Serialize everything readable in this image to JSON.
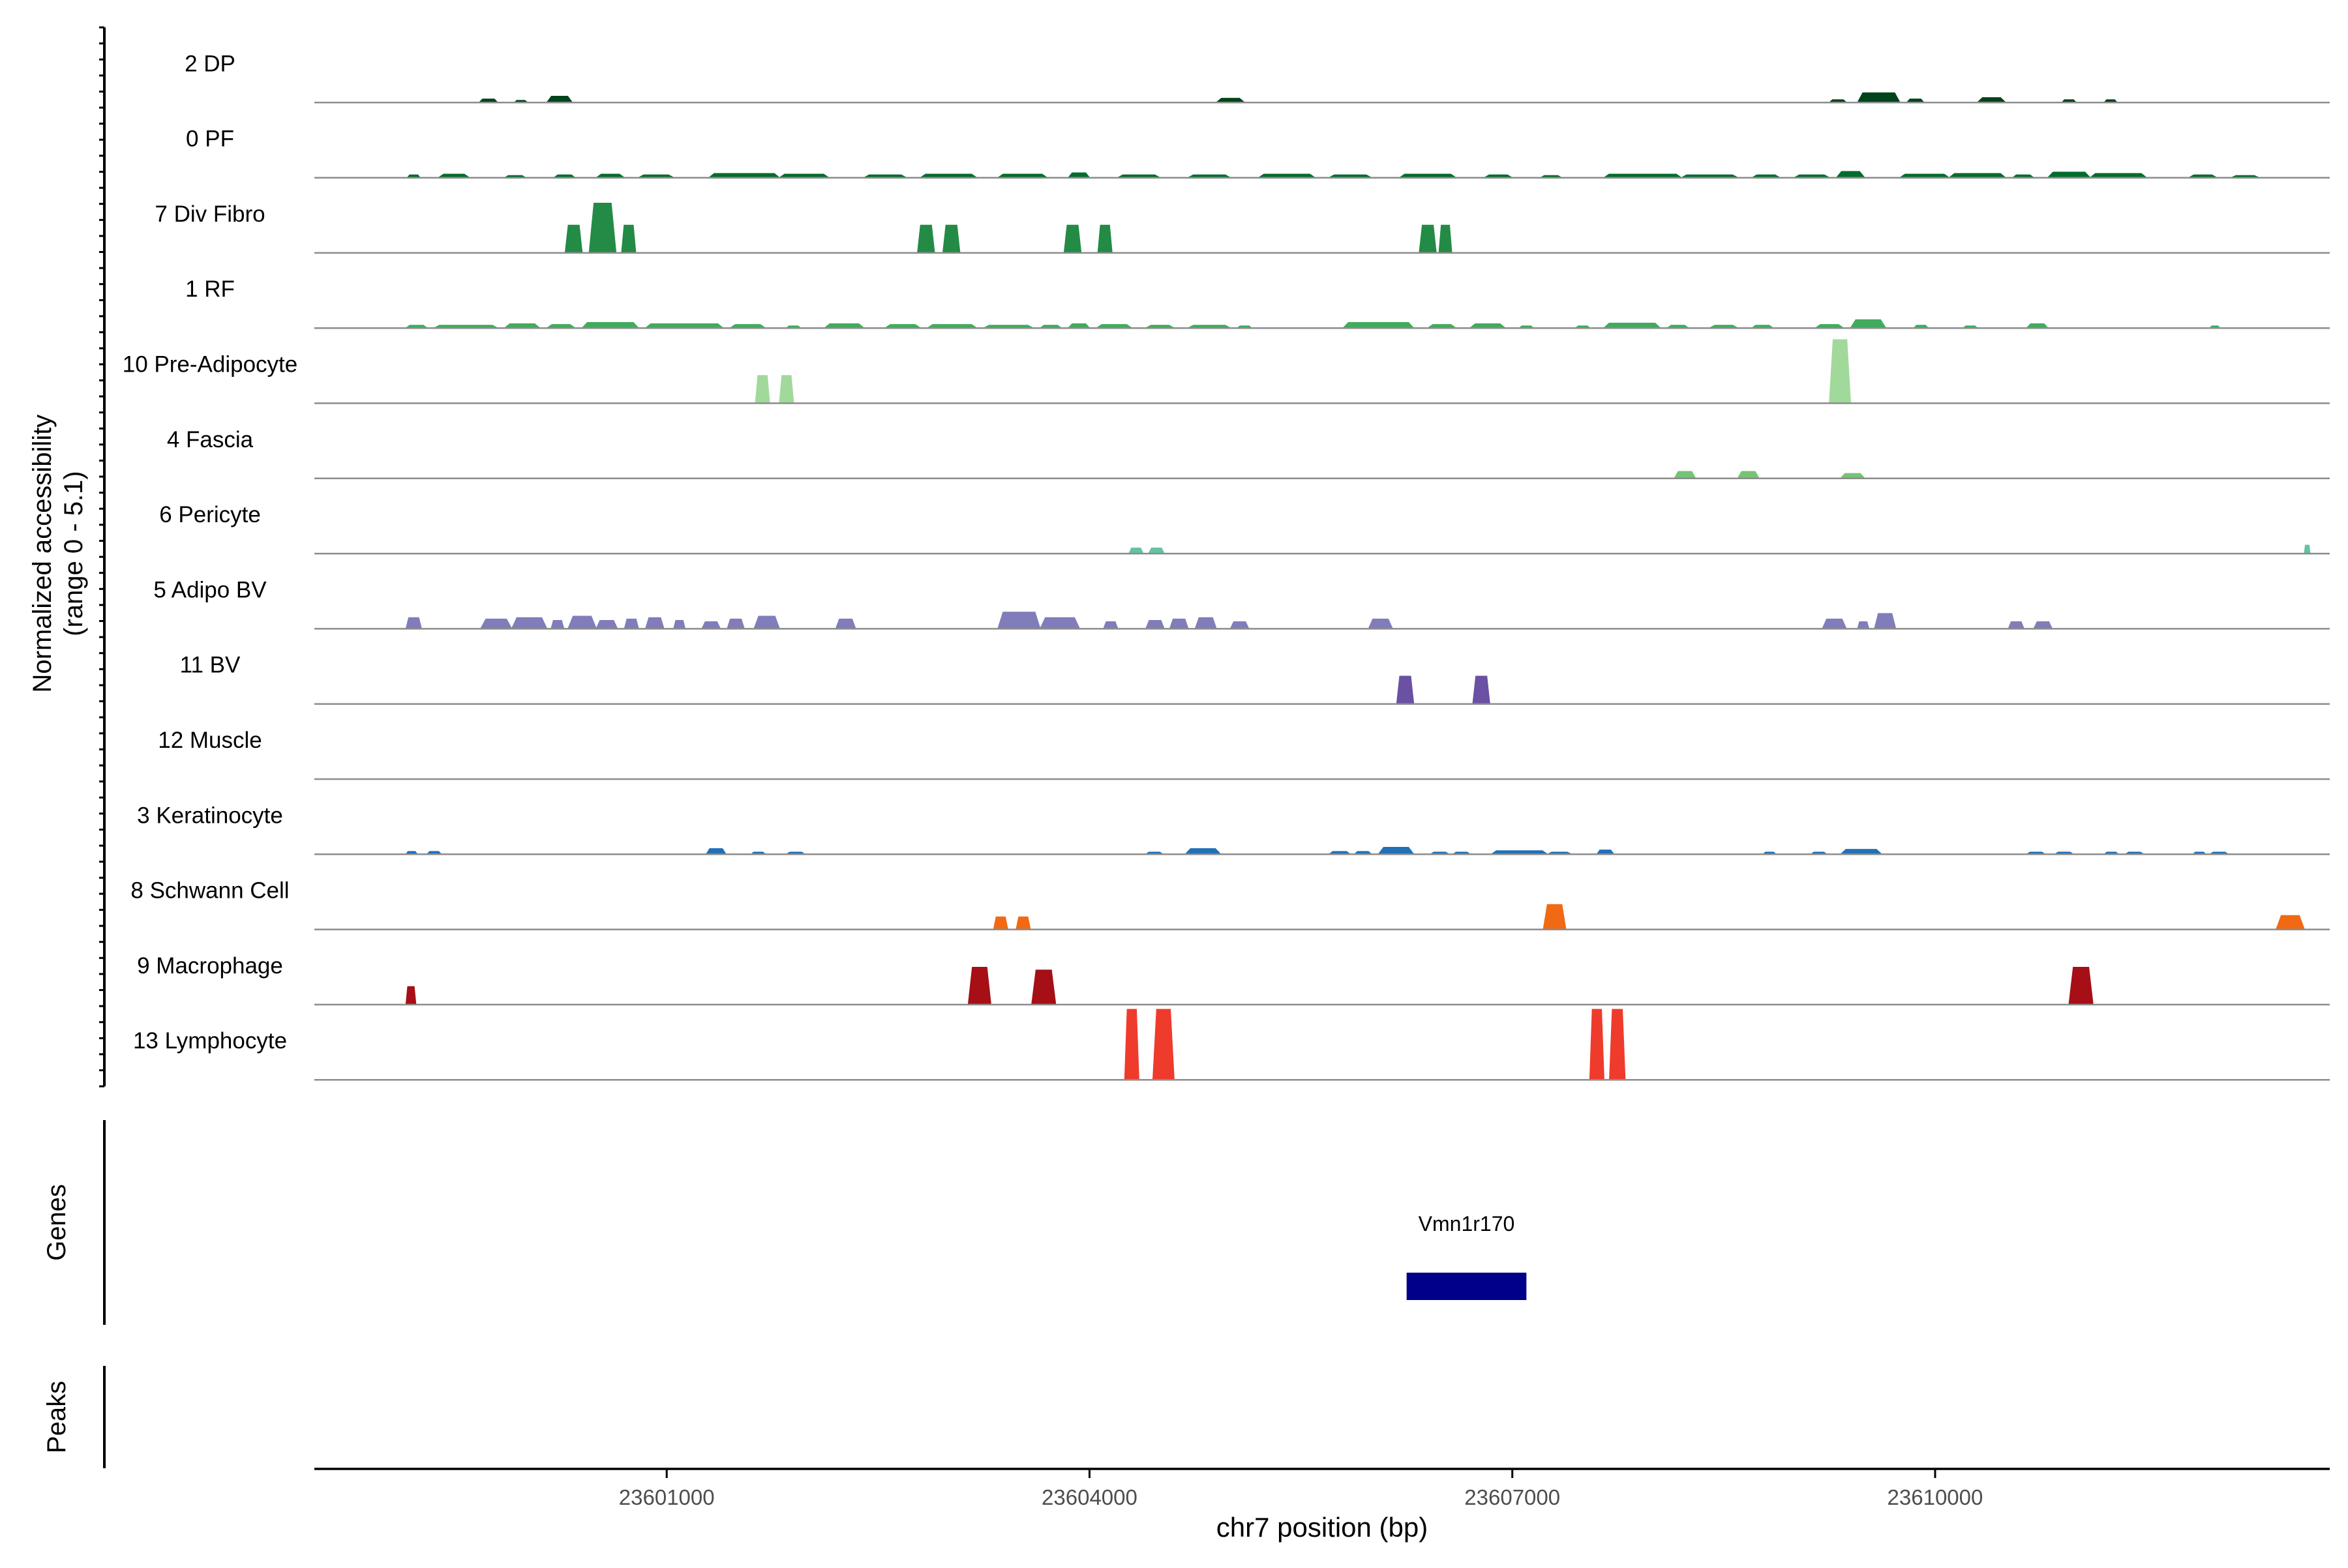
{
  "chart_data": {
    "type": "area",
    "title": "",
    "ylabel_line1": "Normalized accessibility",
    "ylabel_line2": "(range 0 - 5.1)",
    "xlabel": "chr7 position (bp)",
    "xlim": [
      23598500,
      23612800
    ],
    "xticks": [
      23601000,
      23604000,
      23607000,
      23610000
    ],
    "xtick_labels": [
      "23601000",
      "23604000",
      "23607000",
      "23610000"
    ],
    "ylim": [
      0,
      5.1
    ],
    "tracks": [
      {
        "name": "2 DP",
        "color": "#00441b",
        "peaks": [
          {
            "s": 23599670,
            "e": 23599800,
            "h": 0.25
          },
          {
            "s": 23599920,
            "e": 23600010,
            "h": 0.15
          },
          {
            "s": 23600150,
            "e": 23600330,
            "h": 0.45
          },
          {
            "s": 23604900,
            "e": 23605100,
            "h": 0.3
          },
          {
            "s": 23609250,
            "e": 23609370,
            "h": 0.2
          },
          {
            "s": 23609450,
            "e": 23609750,
            "h": 0.7
          },
          {
            "s": 23609800,
            "e": 23609920,
            "h": 0.25
          },
          {
            "s": 23610300,
            "e": 23610500,
            "h": 0.35
          },
          {
            "s": 23610900,
            "e": 23611000,
            "h": 0.2
          },
          {
            "s": 23611200,
            "e": 23611290,
            "h": 0.2
          }
        ]
      },
      {
        "name": "0 PF",
        "color": "#006d2c",
        "peaks": [
          {
            "s": 23599160,
            "e": 23599250,
            "h": 0.2
          },
          {
            "s": 23599380,
            "e": 23599600,
            "h": 0.25
          },
          {
            "s": 23599850,
            "e": 23600000,
            "h": 0.15
          },
          {
            "s": 23600200,
            "e": 23600350,
            "h": 0.2
          },
          {
            "s": 23600500,
            "e": 23600700,
            "h": 0.25
          },
          {
            "s": 23600800,
            "e": 23601050,
            "h": 0.2
          },
          {
            "s": 23601300,
            "e": 23601800,
            "h": 0.3
          },
          {
            "s": 23601800,
            "e": 23602150,
            "h": 0.25
          },
          {
            "s": 23602400,
            "e": 23602700,
            "h": 0.2
          },
          {
            "s": 23602800,
            "e": 23603200,
            "h": 0.25
          },
          {
            "s": 23603350,
            "e": 23603700,
            "h": 0.25
          },
          {
            "s": 23603850,
            "e": 23604000,
            "h": 0.35
          },
          {
            "s": 23604200,
            "e": 23604500,
            "h": 0.2
          },
          {
            "s": 23604700,
            "e": 23605000,
            "h": 0.2
          },
          {
            "s": 23605200,
            "e": 23605600,
            "h": 0.25
          },
          {
            "s": 23605700,
            "e": 23606000,
            "h": 0.2
          },
          {
            "s": 23606200,
            "e": 23606600,
            "h": 0.25
          },
          {
            "s": 23606800,
            "e": 23607000,
            "h": 0.2
          },
          {
            "s": 23607200,
            "e": 23607350,
            "h": 0.15
          },
          {
            "s": 23607650,
            "e": 23608200,
            "h": 0.25
          },
          {
            "s": 23608200,
            "e": 23608600,
            "h": 0.2
          },
          {
            "s": 23608700,
            "e": 23608900,
            "h": 0.2
          },
          {
            "s": 23609000,
            "e": 23609250,
            "h": 0.2
          },
          {
            "s": 23609300,
            "e": 23609500,
            "h": 0.45
          },
          {
            "s": 23609750,
            "e": 23610100,
            "h": 0.25
          },
          {
            "s": 23610100,
            "e": 23610500,
            "h": 0.3
          },
          {
            "s": 23610550,
            "e": 23610700,
            "h": 0.2
          },
          {
            "s": 23610800,
            "e": 23611100,
            "h": 0.4
          },
          {
            "s": 23611100,
            "e": 23611500,
            "h": 0.3
          },
          {
            "s": 23611800,
            "e": 23612000,
            "h": 0.2
          },
          {
            "s": 23612100,
            "e": 23612300,
            "h": 0.15
          }
        ]
      },
      {
        "name": "7 Div Fibro",
        "color": "#238b45",
        "peaks": [
          {
            "s": 23600280,
            "e": 23600400,
            "h": 2.0
          },
          {
            "s": 23600450,
            "e": 23600640,
            "h": 3.6
          },
          {
            "s": 23600680,
            "e": 23600780,
            "h": 2.0
          },
          {
            "s": 23602780,
            "e": 23602900,
            "h": 2.0
          },
          {
            "s": 23602960,
            "e": 23603080,
            "h": 2.0
          },
          {
            "s": 23603820,
            "e": 23603940,
            "h": 2.0
          },
          {
            "s": 23604060,
            "e": 23604160,
            "h": 2.0
          },
          {
            "s": 23606340,
            "e": 23606460,
            "h": 2.0
          },
          {
            "s": 23606480,
            "e": 23606570,
            "h": 2.0
          }
        ]
      },
      {
        "name": "1 RF",
        "color": "#41ab5d",
        "peaks": [
          {
            "s": 23599150,
            "e": 23599300,
            "h": 0.2
          },
          {
            "s": 23599350,
            "e": 23599800,
            "h": 0.2
          },
          {
            "s": 23599850,
            "e": 23600100,
            "h": 0.3
          },
          {
            "s": 23600150,
            "e": 23600350,
            "h": 0.25
          },
          {
            "s": 23600400,
            "e": 23600800,
            "h": 0.4
          },
          {
            "s": 23600850,
            "e": 23601400,
            "h": 0.3
          },
          {
            "s": 23601450,
            "e": 23601700,
            "h": 0.25
          },
          {
            "s": 23601850,
            "e": 23601950,
            "h": 0.15
          },
          {
            "s": 23602120,
            "e": 23602400,
            "h": 0.3
          },
          {
            "s": 23602550,
            "e": 23602800,
            "h": 0.25
          },
          {
            "s": 23602850,
            "e": 23603200,
            "h": 0.25
          },
          {
            "s": 23603250,
            "e": 23603600,
            "h": 0.2
          },
          {
            "s": 23603650,
            "e": 23603800,
            "h": 0.2
          },
          {
            "s": 23603850,
            "e": 23604000,
            "h": 0.3
          },
          {
            "s": 23604050,
            "e": 23604300,
            "h": 0.25
          },
          {
            "s": 23604400,
            "e": 23604600,
            "h": 0.2
          },
          {
            "s": 23604700,
            "e": 23605000,
            "h": 0.2
          },
          {
            "s": 23605050,
            "e": 23605150,
            "h": 0.15
          },
          {
            "s": 23605800,
            "e": 23606300,
            "h": 0.4
          },
          {
            "s": 23606400,
            "e": 23606600,
            "h": 0.25
          },
          {
            "s": 23606700,
            "e": 23606950,
            "h": 0.3
          },
          {
            "s": 23607050,
            "e": 23607150,
            "h": 0.15
          },
          {
            "s": 23607450,
            "e": 23607550,
            "h": 0.15
          },
          {
            "s": 23607650,
            "e": 23608050,
            "h": 0.35
          },
          {
            "s": 23608100,
            "e": 23608250,
            "h": 0.2
          },
          {
            "s": 23608400,
            "e": 23608600,
            "h": 0.2
          },
          {
            "s": 23608700,
            "e": 23608850,
            "h": 0.2
          },
          {
            "s": 23609150,
            "e": 23609350,
            "h": 0.25
          },
          {
            "s": 23609400,
            "e": 23609650,
            "h": 0.6
          },
          {
            "s": 23609850,
            "e": 23609950,
            "h": 0.2
          },
          {
            "s": 23610200,
            "e": 23610300,
            "h": 0.15
          },
          {
            "s": 23610650,
            "e": 23610800,
            "h": 0.3
          },
          {
            "s": 23611950,
            "e": 23612020,
            "h": 0.15
          }
        ]
      },
      {
        "name": "10 Pre-Adipocyte",
        "color": "#a1d99b",
        "peaks": [
          {
            "s": 23601630,
            "e": 23601730,
            "h": 2.0
          },
          {
            "s": 23601800,
            "e": 23601900,
            "h": 2.0
          },
          {
            "s": 23609250,
            "e": 23609400,
            "h": 4.6
          }
        ]
      },
      {
        "name": "4 Fascia",
        "color": "#74c476",
        "peaks": [
          {
            "s": 23608150,
            "e": 23608300,
            "h": 0.5
          },
          {
            "s": 23608600,
            "e": 23608750,
            "h": 0.5
          },
          {
            "s": 23609330,
            "e": 23609500,
            "h": 0.35
          }
        ]
      },
      {
        "name": "6 Pericyte",
        "color": "#66c2a4",
        "peaks": [
          {
            "s": 23604280,
            "e": 23604380,
            "h": 0.4
          },
          {
            "s": 23604420,
            "e": 23604530,
            "h": 0.4
          },
          {
            "s": 23612620,
            "e": 23612660,
            "h": 0.6
          }
        ]
      },
      {
        "name": "5 Adipo BV",
        "color": "#807dba",
        "peaks": [
          {
            "s": 23599150,
            "e": 23599260,
            "h": 0.8
          },
          {
            "s": 23599680,
            "e": 23599900,
            "h": 0.7
          },
          {
            "s": 23599900,
            "e": 23600150,
            "h": 0.8
          },
          {
            "s": 23600180,
            "e": 23600270,
            "h": 0.6
          },
          {
            "s": 23600300,
            "e": 23600500,
            "h": 0.9
          },
          {
            "s": 23600500,
            "e": 23600650,
            "h": 0.6
          },
          {
            "s": 23600700,
            "e": 23600800,
            "h": 0.7
          },
          {
            "s": 23600850,
            "e": 23600980,
            "h": 0.8
          },
          {
            "s": 23601050,
            "e": 23601130,
            "h": 0.6
          },
          {
            "s": 23601250,
            "e": 23601380,
            "h": 0.5
          },
          {
            "s": 23601430,
            "e": 23601550,
            "h": 0.7
          },
          {
            "s": 23601620,
            "e": 23601800,
            "h": 0.9
          },
          {
            "s": 23602200,
            "e": 23602340,
            "h": 0.7
          },
          {
            "s": 23603350,
            "e": 23603650,
            "h": 1.2
          },
          {
            "s": 23603650,
            "e": 23603930,
            "h": 0.8
          },
          {
            "s": 23604100,
            "e": 23604200,
            "h": 0.5
          },
          {
            "s": 23604400,
            "e": 23604530,
            "h": 0.6
          },
          {
            "s": 23604570,
            "e": 23604700,
            "h": 0.7
          },
          {
            "s": 23604750,
            "e": 23604900,
            "h": 0.8
          },
          {
            "s": 23605000,
            "e": 23605130,
            "h": 0.5
          },
          {
            "s": 23605980,
            "e": 23606150,
            "h": 0.7
          },
          {
            "s": 23609200,
            "e": 23609370,
            "h": 0.7
          },
          {
            "s": 23609450,
            "e": 23609530,
            "h": 0.5
          },
          {
            "s": 23609570,
            "e": 23609720,
            "h": 1.1
          },
          {
            "s": 23610520,
            "e": 23610630,
            "h": 0.5
          },
          {
            "s": 23610700,
            "e": 23610830,
            "h": 0.5
          }
        ]
      },
      {
        "name": "11 BV",
        "color": "#6a51a3",
        "peaks": [
          {
            "s": 23606180,
            "e": 23606300,
            "h": 2.0
          },
          {
            "s": 23606720,
            "e": 23606840,
            "h": 2.0
          }
        ]
      },
      {
        "name": "12 Muscle",
        "color": "#54278f",
        "peaks": []
      },
      {
        "name": "3 Keratinocyte",
        "color": "#2171b5",
        "peaks": [
          {
            "s": 23599150,
            "e": 23599230,
            "h": 0.2
          },
          {
            "s": 23599300,
            "e": 23599400,
            "h": 0.2
          },
          {
            "s": 23601280,
            "e": 23601420,
            "h": 0.4
          },
          {
            "s": 23601600,
            "e": 23601700,
            "h": 0.15
          },
          {
            "s": 23601850,
            "e": 23601980,
            "h": 0.15
          },
          {
            "s": 23604400,
            "e": 23604520,
            "h": 0.15
          },
          {
            "s": 23604680,
            "e": 23604930,
            "h": 0.4
          },
          {
            "s": 23605700,
            "e": 23605850,
            "h": 0.2
          },
          {
            "s": 23605880,
            "e": 23606000,
            "h": 0.2
          },
          {
            "s": 23606050,
            "e": 23606300,
            "h": 0.5
          },
          {
            "s": 23606420,
            "e": 23606550,
            "h": 0.15
          },
          {
            "s": 23606580,
            "e": 23606700,
            "h": 0.15
          },
          {
            "s": 23606850,
            "e": 23607250,
            "h": 0.25
          },
          {
            "s": 23607250,
            "e": 23607420,
            "h": 0.15
          },
          {
            "s": 23607600,
            "e": 23607720,
            "h": 0.3
          },
          {
            "s": 23608780,
            "e": 23608870,
            "h": 0.15
          },
          {
            "s": 23609120,
            "e": 23609230,
            "h": 0.15
          },
          {
            "s": 23609330,
            "e": 23609620,
            "h": 0.35
          },
          {
            "s": 23610650,
            "e": 23610780,
            "h": 0.15
          },
          {
            "s": 23610850,
            "e": 23610980,
            "h": 0.15
          },
          {
            "s": 23611200,
            "e": 23611300,
            "h": 0.15
          },
          {
            "s": 23611350,
            "e": 23611480,
            "h": 0.15
          },
          {
            "s": 23611830,
            "e": 23611920,
            "h": 0.15
          },
          {
            "s": 23611950,
            "e": 23612080,
            "h": 0.15
          }
        ]
      },
      {
        "name": "8 Schwann Cell",
        "color": "#f16913",
        "peaks": [
          {
            "s": 23603320,
            "e": 23603420,
            "h": 0.9
          },
          {
            "s": 23603480,
            "e": 23603580,
            "h": 0.9
          },
          {
            "s": 23607220,
            "e": 23607380,
            "h": 1.8
          },
          {
            "s": 23612420,
            "e": 23612620,
            "h": 1.0
          }
        ]
      },
      {
        "name": "9 Macrophage",
        "color": "#a50f15",
        "peaks": [
          {
            "s": 23599150,
            "e": 23599220,
            "h": 1.3
          },
          {
            "s": 23603140,
            "e": 23603300,
            "h": 2.7
          },
          {
            "s": 23603590,
            "e": 23603760,
            "h": 2.5
          },
          {
            "s": 23610950,
            "e": 23611120,
            "h": 2.7
          }
        ]
      },
      {
        "name": "13 Lymphocyte",
        "color": "#ef3b2c",
        "peaks": [
          {
            "s": 23604250,
            "e": 23604350,
            "h": 5.1
          },
          {
            "s": 23604450,
            "e": 23604600,
            "h": 5.1
          },
          {
            "s": 23607550,
            "e": 23607650,
            "h": 5.1
          },
          {
            "s": 23607690,
            "e": 23607800,
            "h": 5.1
          }
        ]
      }
    ],
    "genes_label": "Genes",
    "peaks_label": "Peaks",
    "gene": {
      "name": "Vmn1r170",
      "start": 23606250,
      "end": 23607100,
      "color": "#00008b"
    }
  }
}
